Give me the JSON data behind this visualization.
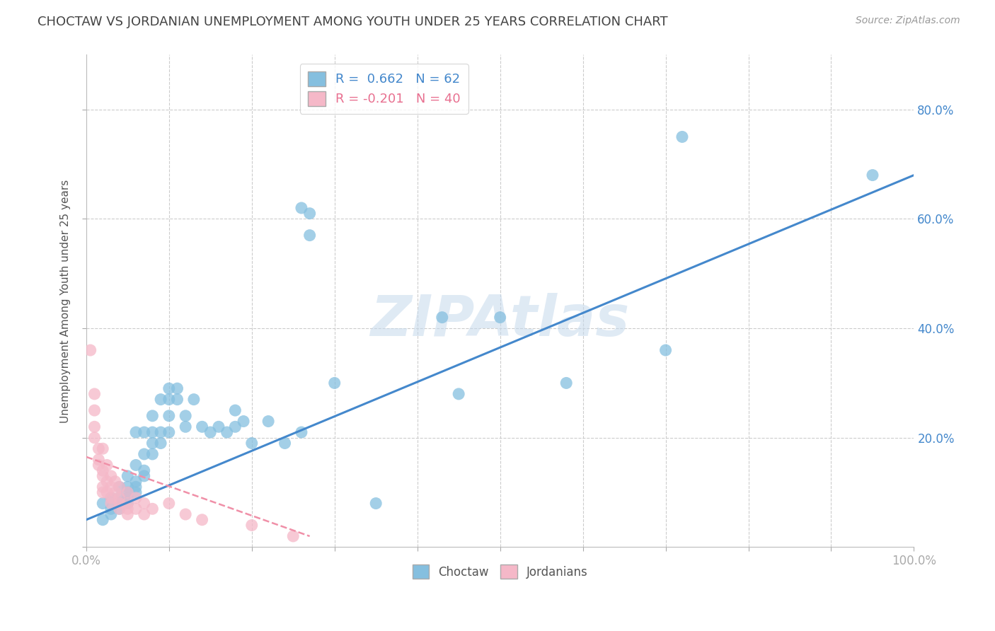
{
  "title": "CHOCTAW VS JORDANIAN UNEMPLOYMENT AMONG YOUTH UNDER 25 YEARS CORRELATION CHART",
  "source_text": "Source: ZipAtlas.com",
  "ylabel": "Unemployment Among Youth under 25 years",
  "R_choctaw": 0.662,
  "N_choctaw": 62,
  "R_jordan": -0.201,
  "N_jordan": 40,
  "legend_blue_label": "Choctaw",
  "legend_pink_label": "Jordanians",
  "choctaw_color": "#85bfdf",
  "jordan_color": "#f5b8c8",
  "choctaw_line_color": "#4488cc",
  "jordan_line_color": "#f090a8",
  "watermark": "ZIPAtlas",
  "background_color": "#ffffff",
  "grid_color": "#cccccc",
  "xlim": [
    0.0,
    1.0
  ],
  "ylim": [
    0.0,
    0.9
  ],
  "choctaw_points": [
    [
      0.02,
      0.05
    ],
    [
      0.02,
      0.08
    ],
    [
      0.03,
      0.09
    ],
    [
      0.03,
      0.07
    ],
    [
      0.03,
      0.06
    ],
    [
      0.04,
      0.09
    ],
    [
      0.04,
      0.11
    ],
    [
      0.04,
      0.08
    ],
    [
      0.04,
      0.07
    ],
    [
      0.05,
      0.11
    ],
    [
      0.05,
      0.09
    ],
    [
      0.05,
      0.08
    ],
    [
      0.05,
      0.13
    ],
    [
      0.05,
      0.1
    ],
    [
      0.06,
      0.12
    ],
    [
      0.06,
      0.11
    ],
    [
      0.06,
      0.15
    ],
    [
      0.06,
      0.1
    ],
    [
      0.06,
      0.21
    ],
    [
      0.07,
      0.14
    ],
    [
      0.07,
      0.17
    ],
    [
      0.07,
      0.13
    ],
    [
      0.07,
      0.21
    ],
    [
      0.08,
      0.17
    ],
    [
      0.08,
      0.19
    ],
    [
      0.08,
      0.24
    ],
    [
      0.08,
      0.21
    ],
    [
      0.09,
      0.21
    ],
    [
      0.09,
      0.27
    ],
    [
      0.09,
      0.19
    ],
    [
      0.1,
      0.27
    ],
    [
      0.1,
      0.24
    ],
    [
      0.1,
      0.21
    ],
    [
      0.1,
      0.29
    ],
    [
      0.11,
      0.27
    ],
    [
      0.11,
      0.29
    ],
    [
      0.12,
      0.24
    ],
    [
      0.12,
      0.22
    ],
    [
      0.13,
      0.27
    ],
    [
      0.14,
      0.22
    ],
    [
      0.15,
      0.21
    ],
    [
      0.16,
      0.22
    ],
    [
      0.17,
      0.21
    ],
    [
      0.18,
      0.25
    ],
    [
      0.18,
      0.22
    ],
    [
      0.19,
      0.23
    ],
    [
      0.2,
      0.19
    ],
    [
      0.22,
      0.23
    ],
    [
      0.24,
      0.19
    ],
    [
      0.26,
      0.21
    ],
    [
      0.26,
      0.62
    ],
    [
      0.27,
      0.61
    ],
    [
      0.27,
      0.57
    ],
    [
      0.3,
      0.3
    ],
    [
      0.35,
      0.08
    ],
    [
      0.43,
      0.42
    ],
    [
      0.45,
      0.28
    ],
    [
      0.5,
      0.42
    ],
    [
      0.58,
      0.3
    ],
    [
      0.7,
      0.36
    ],
    [
      0.72,
      0.75
    ],
    [
      0.95,
      0.68
    ]
  ],
  "jordan_points": [
    [
      0.005,
      0.36
    ],
    [
      0.01,
      0.28
    ],
    [
      0.01,
      0.25
    ],
    [
      0.01,
      0.22
    ],
    [
      0.01,
      0.2
    ],
    [
      0.015,
      0.18
    ],
    [
      0.015,
      0.16
    ],
    [
      0.015,
      0.15
    ],
    [
      0.02,
      0.18
    ],
    [
      0.02,
      0.14
    ],
    [
      0.02,
      0.13
    ],
    [
      0.02,
      0.11
    ],
    [
      0.02,
      0.1
    ],
    [
      0.025,
      0.15
    ],
    [
      0.025,
      0.12
    ],
    [
      0.025,
      0.1
    ],
    [
      0.03,
      0.13
    ],
    [
      0.03,
      0.11
    ],
    [
      0.03,
      0.09
    ],
    [
      0.03,
      0.08
    ],
    [
      0.035,
      0.12
    ],
    [
      0.035,
      0.1
    ],
    [
      0.04,
      0.11
    ],
    [
      0.04,
      0.09
    ],
    [
      0.04,
      0.08
    ],
    [
      0.04,
      0.07
    ],
    [
      0.05,
      0.1
    ],
    [
      0.05,
      0.08
    ],
    [
      0.05,
      0.07
    ],
    [
      0.05,
      0.06
    ],
    [
      0.06,
      0.09
    ],
    [
      0.06,
      0.07
    ],
    [
      0.07,
      0.08
    ],
    [
      0.07,
      0.06
    ],
    [
      0.08,
      0.07
    ],
    [
      0.1,
      0.08
    ],
    [
      0.12,
      0.06
    ],
    [
      0.14,
      0.05
    ],
    [
      0.2,
      0.04
    ],
    [
      0.25,
      0.02
    ]
  ],
  "choctaw_line_x": [
    0.0,
    1.0
  ],
  "choctaw_line_y": [
    0.05,
    0.68
  ],
  "jordan_line_x": [
    0.0,
    0.27
  ],
  "jordan_line_y": [
    0.165,
    0.02
  ]
}
